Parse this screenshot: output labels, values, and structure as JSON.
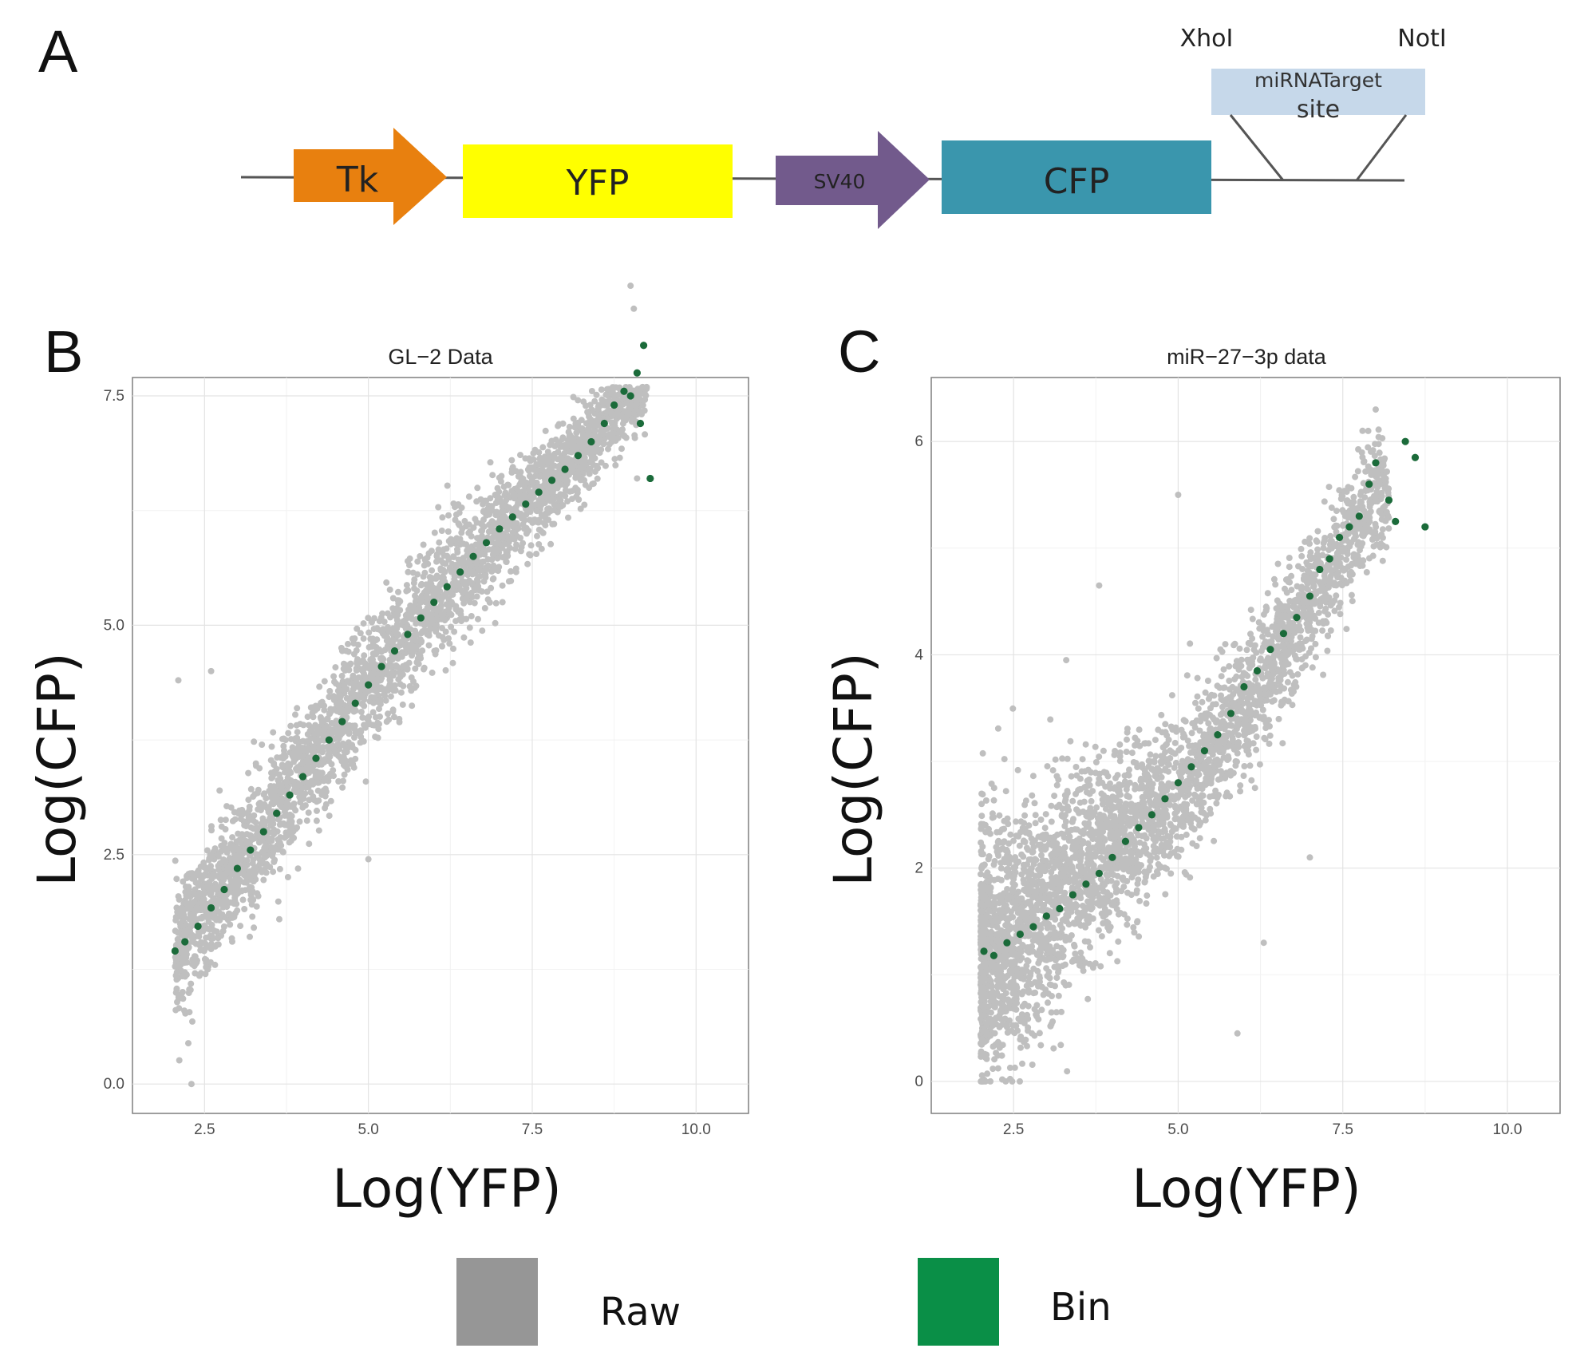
{
  "panel_a": {
    "letter": "A",
    "elements": {
      "tk": "Tk",
      "yfp": "YFP",
      "sv40": "SV40",
      "cfp": "CFP",
      "target_line1": "miRNATarget",
      "target_line2": "site",
      "xhoi": "XhoI",
      "noti": "NotI"
    },
    "colors": {
      "tk": "#e8800f",
      "yfp": "#ffff00",
      "sv40": "#725a8c",
      "cfp": "#3a96ad",
      "target": "#c6d8ea"
    }
  },
  "legend": {
    "raw_label": "Raw",
    "bin_label": "Bin",
    "raw_color": "#969696",
    "bin_color": "#0a8f47"
  },
  "chart_data": [
    {
      "panel": "B",
      "type": "scatter",
      "title": "GL−2 Data",
      "xlabel": "Log(YFP)",
      "ylabel": "Log(CFP)",
      "xlim": [
        1.4,
        10.8
      ],
      "ylim": [
        -0.32,
        7.7
      ],
      "xticks": [
        2.5,
        5.0,
        7.5,
        10.0
      ],
      "xtick_labels": [
        "2.5",
        "5.0",
        "7.5",
        "10.0"
      ],
      "yticks": [
        0.0,
        2.5,
        5.0,
        7.5
      ],
      "ytick_labels": [
        "0.0",
        "2.5",
        "5.0",
        "7.5"
      ],
      "grid": true,
      "series": [
        {
          "name": "Raw",
          "color": "#bfbfbf",
          "cloud": {
            "x_range": [
              2.05,
              9.25
            ],
            "trend": [
              [
                2.05,
                1.45
              ],
              [
                3.0,
                2.35
              ],
              [
                4.0,
                3.35
              ],
              [
                5.0,
                4.35
              ],
              [
                6.0,
                5.25
              ],
              [
                7.0,
                6.05
              ],
              [
                8.0,
                6.7
              ],
              [
                9.0,
                7.55
              ]
            ],
            "spread": [
              [
                2.05,
                0.8
              ],
              [
                3.0,
                0.8
              ],
              [
                5.0,
                0.75
              ],
              [
                7.0,
                0.65
              ],
              [
                8.0,
                0.55
              ],
              [
                9.0,
                0.5
              ]
            ]
          },
          "outliers": [
            [
              2.1,
              4.4
            ],
            [
              2.3,
              0.0
            ],
            [
              2.6,
              4.5
            ],
            [
              5.0,
              2.45
            ],
            [
              9.0,
              8.7
            ],
            [
              9.05,
              8.45
            ],
            [
              9.1,
              6.6
            ]
          ]
        },
        {
          "name": "Bin",
          "color": "#1b6b3a",
          "points": [
            [
              2.05,
              1.45
            ],
            [
              2.2,
              1.55
            ],
            [
              2.4,
              1.72
            ],
            [
              2.6,
              1.92
            ],
            [
              2.8,
              2.12
            ],
            [
              3.0,
              2.35
            ],
            [
              3.2,
              2.55
            ],
            [
              3.4,
              2.75
            ],
            [
              3.6,
              2.95
            ],
            [
              3.8,
              3.15
            ],
            [
              4.0,
              3.35
            ],
            [
              4.2,
              3.55
            ],
            [
              4.4,
              3.75
            ],
            [
              4.6,
              3.95
            ],
            [
              4.8,
              4.15
            ],
            [
              5.0,
              4.35
            ],
            [
              5.2,
              4.55
            ],
            [
              5.4,
              4.72
            ],
            [
              5.6,
              4.9
            ],
            [
              5.8,
              5.08
            ],
            [
              6.0,
              5.25
            ],
            [
              6.2,
              5.42
            ],
            [
              6.4,
              5.58
            ],
            [
              6.6,
              5.75
            ],
            [
              6.8,
              5.9
            ],
            [
              7.0,
              6.05
            ],
            [
              7.2,
              6.18
            ],
            [
              7.4,
              6.32
            ],
            [
              7.6,
              6.45
            ],
            [
              7.8,
              6.58
            ],
            [
              8.0,
              6.7
            ],
            [
              8.2,
              6.85
            ],
            [
              8.4,
              7.0
            ],
            [
              8.6,
              7.2
            ],
            [
              8.75,
              7.4
            ],
            [
              8.9,
              7.55
            ],
            [
              9.0,
              7.5
            ],
            [
              9.1,
              7.75
            ],
            [
              9.15,
              7.2
            ],
            [
              9.2,
              8.05
            ],
            [
              9.3,
              6.6
            ]
          ]
        }
      ]
    },
    {
      "panel": "C",
      "type": "scatter",
      "title": "miR−27−3p data",
      "xlabel": "Log(YFP)",
      "ylabel": "Log(CFP)",
      "xlim": [
        1.25,
        10.8
      ],
      "ylim": [
        -0.3,
        6.6
      ],
      "xticks": [
        2.5,
        5.0,
        7.5,
        10.0
      ],
      "xtick_labels": [
        "2.5",
        "5.0",
        "7.5",
        "10.0"
      ],
      "yticks": [
        0,
        2,
        4,
        6
      ],
      "ytick_labels": [
        "0",
        "2",
        "4",
        "6"
      ],
      "grid": true,
      "series": [
        {
          "name": "Raw",
          "color": "#bfbfbf",
          "cloud": {
            "x_range": [
              2.0,
              8.2
            ],
            "trend": [
              [
                2.0,
                1.2
              ],
              [
                3.0,
                1.6
              ],
              [
                4.0,
                2.2
              ],
              [
                5.0,
                2.7
              ],
              [
                6.0,
                3.5
              ],
              [
                7.0,
                4.5
              ],
              [
                8.0,
                5.5
              ]
            ],
            "spread": [
              [
                2.0,
                1.4
              ],
              [
                3.0,
                1.2
              ],
              [
                4.0,
                0.9
              ],
              [
                5.0,
                0.75
              ],
              [
                6.0,
                0.7
              ],
              [
                7.0,
                0.65
              ],
              [
                8.0,
                0.6
              ]
            ]
          },
          "outliers": [
            [
              5.0,
              5.5
            ],
            [
              3.8,
              4.65
            ],
            [
              3.3,
              3.95
            ],
            [
              5.9,
              0.45
            ],
            [
              8.0,
              6.3
            ],
            [
              7.8,
              6.1
            ],
            [
              7.0,
              2.1
            ],
            [
              6.3,
              1.3
            ]
          ]
        },
        {
          "name": "Bin",
          "color": "#1b6b3a",
          "points": [
            [
              2.05,
              1.22
            ],
            [
              2.2,
              1.18
            ],
            [
              2.4,
              1.3
            ],
            [
              2.6,
              1.38
            ],
            [
              2.8,
              1.45
            ],
            [
              3.0,
              1.55
            ],
            [
              3.2,
              1.62
            ],
            [
              3.4,
              1.75
            ],
            [
              3.6,
              1.85
            ],
            [
              3.8,
              1.95
            ],
            [
              4.0,
              2.1
            ],
            [
              4.2,
              2.25
            ],
            [
              4.4,
              2.38
            ],
            [
              4.6,
              2.5
            ],
            [
              4.8,
              2.65
            ],
            [
              5.0,
              2.8
            ],
            [
              5.2,
              2.95
            ],
            [
              5.4,
              3.1
            ],
            [
              5.6,
              3.25
            ],
            [
              5.8,
              3.45
            ],
            [
              6.0,
              3.7
            ],
            [
              6.2,
              3.85
            ],
            [
              6.4,
              4.05
            ],
            [
              6.6,
              4.2
            ],
            [
              6.8,
              4.35
            ],
            [
              7.0,
              4.55
            ],
            [
              7.15,
              4.8
            ],
            [
              7.3,
              4.9
            ],
            [
              7.45,
              5.1
            ],
            [
              7.6,
              5.2
            ],
            [
              7.75,
              5.3
            ],
            [
              7.9,
              5.6
            ],
            [
              8.0,
              5.8
            ],
            [
              8.2,
              5.45
            ],
            [
              8.3,
              5.25
            ],
            [
              8.45,
              6.0
            ],
            [
              8.6,
              5.85
            ],
            [
              8.75,
              5.2
            ]
          ]
        }
      ]
    }
  ]
}
